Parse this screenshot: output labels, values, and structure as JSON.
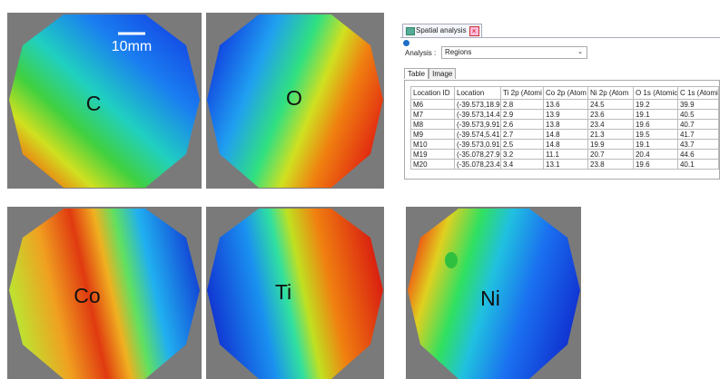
{
  "maps": [
    {
      "label": "C"
    },
    {
      "label": "O"
    },
    {
      "label": "Co"
    },
    {
      "label": "Ti"
    },
    {
      "label": "Ni"
    }
  ],
  "scale_bar": "10mm",
  "panel": {
    "tab_title": "Spatial analysis",
    "analysis_label": "Analysis :",
    "analysis_value": "Regions",
    "tabs": [
      "Table",
      "Image"
    ],
    "columns": [
      "Location ID",
      "Location",
      "Ti 2p (Atomi",
      "Co 2p (Atom",
      "Ni 2p (Atom",
      "O 1s (Atomic",
      "C 1s (Atomic"
    ],
    "rows": [
      [
        "M6",
        "(-39.573,18.9",
        2.8,
        13.6,
        24.5,
        19.2,
        39.9
      ],
      [
        "M7",
        "(-39.573,14.4",
        2.9,
        13.9,
        23.6,
        19.1,
        40.5
      ],
      [
        "M8",
        "(-39.573,9.91",
        2.6,
        13.8,
        23.4,
        19.6,
        40.7
      ],
      [
        "M9",
        "(-39.574,5.41",
        2.7,
        14.8,
        21.3,
        19.5,
        41.7
      ],
      [
        "M10",
        "(-39.573,0.91",
        2.5,
        14.8,
        19.9,
        19.1,
        43.7
      ],
      [
        "M19",
        "(-35.078,27.9",
        3.2,
        11.1,
        20.7,
        20.4,
        44.6
      ],
      [
        "M20",
        "(-35.078,23.4",
        3.4,
        13.1,
        23.8,
        19.6,
        40.1
      ]
    ]
  }
}
